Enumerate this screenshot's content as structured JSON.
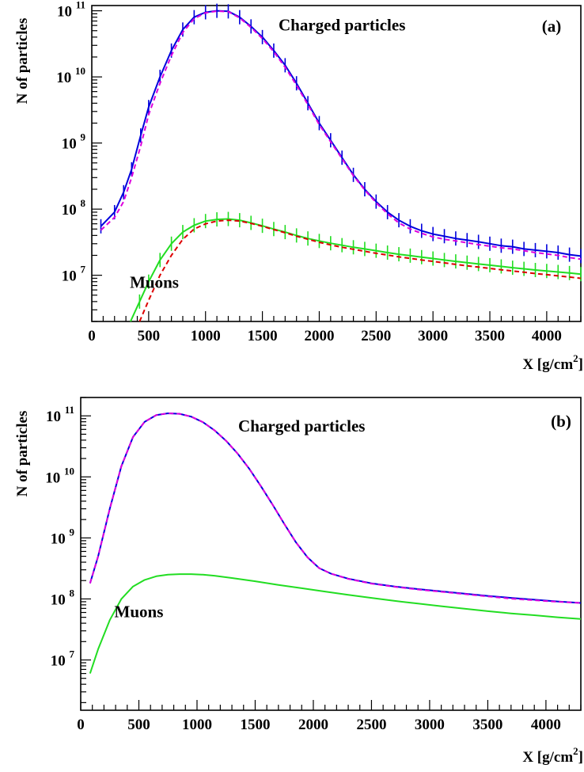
{
  "chart_data": [
    {
      "type": "line",
      "panel_label": "(a)",
      "xlabel": "X [g/cm",
      "xlabel_sup": "2",
      "xlabel_close": "]",
      "ylabel": "N of particles",
      "xlim": [
        0,
        4300
      ],
      "ylim": [
        2000000,
        120000000000
      ],
      "yscale": "log",
      "xticks": [
        0,
        500,
        1000,
        1500,
        2000,
        2500,
        3000,
        3500,
        4000
      ],
      "ytick_exponents": [
        7,
        8,
        9,
        10,
        11
      ],
      "ytick_base": "10",
      "annotations": [
        {
          "text": "Charged particles",
          "x": 2200,
          "y": 50000000000
        },
        {
          "text": "Muons",
          "x": 550,
          "y": 6500000
        }
      ],
      "series": [
        {
          "color": "#0000dd",
          "style": "solid",
          "error_bars": true,
          "x": [
            80,
            200,
            280,
            350,
            430,
            500,
            600,
            700,
            800,
            900,
            1000,
            1100,
            1200,
            1300,
            1400,
            1500,
            1600,
            1700,
            1800,
            1900,
            2000,
            2100,
            2200,
            2300,
            2400,
            2500,
            2600,
            2700,
            2800,
            2900,
            3000,
            3100,
            3200,
            3300,
            3400,
            3500,
            3600,
            3700,
            3800,
            3900,
            4000,
            4100,
            4200,
            4300
          ],
          "y": [
            55000000,
            90000000,
            180000000,
            400000000,
            1300000000,
            3500000000,
            10000000000,
            25000000000,
            52000000000,
            80000000000,
            95000000000,
            100000000000,
            98000000000,
            80000000000,
            58000000000,
            40000000000,
            25000000000,
            15000000000,
            8000000000,
            4000000000,
            2000000000,
            1100000000,
            600000000,
            330000000,
            200000000,
            130000000,
            90000000,
            68000000,
            55000000,
            47000000,
            42000000,
            39000000,
            36000000,
            34000000,
            32000000,
            30000000,
            28000000,
            27000000,
            25000000,
            24000000,
            23000000,
            22000000,
            20500000,
            19500000
          ]
        },
        {
          "color": "#dd00dd",
          "style": "dashed",
          "error_bars": false,
          "x": [
            80,
            200,
            280,
            350,
            430,
            500,
            600,
            700,
            800,
            900,
            1000,
            1100,
            1200,
            1300,
            1400,
            1500,
            1600,
            1700,
            1800,
            1900,
            2000,
            2100,
            2200,
            2300,
            2400,
            2500,
            2600,
            2700,
            2800,
            2900,
            3000,
            3100,
            3200,
            3300,
            3400,
            3500,
            3600,
            3700,
            3800,
            3900,
            4000,
            4100,
            4200,
            4300
          ],
          "y": [
            48000000,
            75000000,
            130000000,
            300000000,
            900000000,
            2700000000,
            8000000000,
            21000000000,
            47000000000,
            76000000000,
            93000000000,
            99000000000,
            97000000000,
            78000000000,
            56000000000,
            38000000000,
            24000000000,
            14000000000,
            7500000000,
            3800000000,
            1900000000,
            1050000000,
            580000000,
            320000000,
            195000000,
            125000000,
            85000000,
            62000000,
            50000000,
            43000000,
            38000000,
            35000000,
            33000000,
            31000000,
            29000000,
            27500000,
            26000000,
            25000000,
            23500000,
            22000000,
            21000000,
            20000000,
            18500000,
            17500000
          ]
        },
        {
          "color": "#22dd22",
          "style": "solid",
          "error_bars": true,
          "x": [
            340,
            420,
            500,
            600,
            700,
            800,
            900,
            1000,
            1100,
            1200,
            1300,
            1400,
            1500,
            1600,
            1700,
            1800,
            1900,
            2000,
            2100,
            2200,
            2300,
            2400,
            2500,
            2600,
            2700,
            2800,
            2900,
            3000,
            3100,
            3200,
            3300,
            3400,
            3500,
            3600,
            3700,
            3800,
            3900,
            4000,
            4100,
            4200,
            4300
          ],
          "y": [
            2000000,
            4000000,
            8000000,
            17000000,
            30000000,
            45000000,
            57000000,
            66000000,
            70000000,
            71000000,
            68000000,
            62000000,
            56000000,
            50000000,
            45000000,
            40000000,
            36000000,
            33000000,
            30500000,
            28500000,
            26500000,
            25000000,
            23500000,
            22000000,
            20800000,
            19800000,
            18800000,
            17900000,
            17000000,
            16200000,
            15500000,
            14800000,
            14200000,
            13600000,
            13000000,
            12500000,
            12000000,
            11600000,
            11200000,
            10800000,
            10400000
          ]
        },
        {
          "color": "#dd0000",
          "style": "dashed",
          "error_bars": false,
          "x": [
            420,
            500,
            600,
            700,
            800,
            900,
            1000,
            1100,
            1200,
            1300,
            1400,
            1500,
            1600,
            1700,
            1800,
            1900,
            2000,
            2100,
            2200,
            2300,
            2400,
            2500,
            2600,
            2700,
            2800,
            2900,
            3000,
            3100,
            3200,
            3300,
            3400,
            3500,
            3600,
            3700,
            3800,
            3900,
            4000,
            4100,
            4200,
            4300
          ],
          "y": [
            2000000,
            4200000,
            10000000,
            20000000,
            35000000,
            50000000,
            60000000,
            66000000,
            68000000,
            66000000,
            61000000,
            55000000,
            49000000,
            44000000,
            39000000,
            35000000,
            31500000,
            28800000,
            26500000,
            24700000,
            23000000,
            21500000,
            20200000,
            19000000,
            18000000,
            17000000,
            16200000,
            15400000,
            14600000,
            13900000,
            13300000,
            12700000,
            12100000,
            11600000,
            11100000,
            10600000,
            10200000,
            9800000,
            9400000,
            9000000
          ]
        }
      ]
    },
    {
      "type": "line",
      "panel_label": "(b)",
      "xlabel": "X [g/cm",
      "xlabel_sup": "2",
      "xlabel_close": "]",
      "ylabel": "N of particles",
      "xlim": [
        0,
        4300
      ],
      "ylim": [
        1500000,
        200000000000
      ],
      "yscale": "log",
      "xticks": [
        0,
        500,
        1000,
        1500,
        2000,
        2500,
        3000,
        3500,
        4000
      ],
      "ytick_exponents": [
        7,
        8,
        9,
        10,
        11
      ],
      "ytick_base": "10",
      "annotations": [
        {
          "text": "Charged particles",
          "x": 1900,
          "y": 55000000000
        },
        {
          "text": "Muons",
          "x": 500,
          "y": 50000000
        }
      ],
      "series": [
        {
          "color": "#0000dd",
          "style": "solid",
          "error_bars": false,
          "x": [
            80,
            150,
            250,
            350,
            450,
            550,
            650,
            750,
            850,
            950,
            1050,
            1150,
            1250,
            1350,
            1450,
            1550,
            1650,
            1750,
            1850,
            1950,
            2050,
            2150,
            2300,
            2500,
            2700,
            2900,
            3100,
            3300,
            3500,
            3700,
            3900,
            4100,
            4300
          ],
          "y": [
            180000000,
            500000000,
            3000000000,
            15000000000,
            45000000000,
            80000000000,
            103000000000,
            110000000000,
            108000000000,
            97000000000,
            79000000000,
            58000000000,
            39000000000,
            24000000000,
            13500000000,
            7000000000,
            3500000000,
            1700000000,
            850000000,
            480000000,
            320000000,
            260000000,
            215000000,
            180000000,
            160000000,
            145000000,
            133000000,
            122000000,
            112000000,
            104000000,
            97000000,
            91000000,
            86000000
          ]
        },
        {
          "color": "#dd00dd",
          "style": "dashed",
          "error_bars": false,
          "x": [
            80,
            150,
            250,
            350,
            450,
            550,
            650,
            750,
            850,
            950,
            1050,
            1150,
            1250,
            1350,
            1450,
            1550,
            1650,
            1750,
            1850,
            1950,
            2050,
            2150,
            2300,
            2500,
            2700,
            2900,
            3100,
            3300,
            3500,
            3700,
            3900,
            4100,
            4300
          ],
          "y": [
            180000000,
            500000000,
            3000000000,
            15000000000,
            45000000000,
            80000000000,
            103000000000,
            110000000000,
            108000000000,
            97000000000,
            79000000000,
            58000000000,
            39000000000,
            24000000000,
            13500000000,
            7000000000,
            3500000000,
            1700000000,
            850000000,
            480000000,
            320000000,
            260000000,
            213000000,
            178000000,
            158000000,
            143000000,
            131000000,
            120000000,
            110000000,
            101000000,
            95000000,
            90000000,
            86000000
          ]
        },
        {
          "color": "#22dd22",
          "style": "solid",
          "error_bars": false,
          "x": [
            80,
            150,
            250,
            350,
            450,
            550,
            650,
            750,
            850,
            950,
            1050,
            1150,
            1300,
            1500,
            1700,
            1900,
            2100,
            2300,
            2500,
            2700,
            2900,
            3100,
            3300,
            3500,
            3700,
            3900,
            4100,
            4300
          ],
          "y": [
            6000000,
            15000000,
            45000000,
            100000000,
            160000000,
            205000000,
            235000000,
            250000000,
            255000000,
            255000000,
            250000000,
            240000000,
            220000000,
            195000000,
            170000000,
            150000000,
            132000000,
            117000000,
            104000000,
            93000000,
            84000000,
            76000000,
            69000000,
            63000000,
            58000000,
            54000000,
            50000000,
            47000000
          ]
        }
      ]
    }
  ]
}
